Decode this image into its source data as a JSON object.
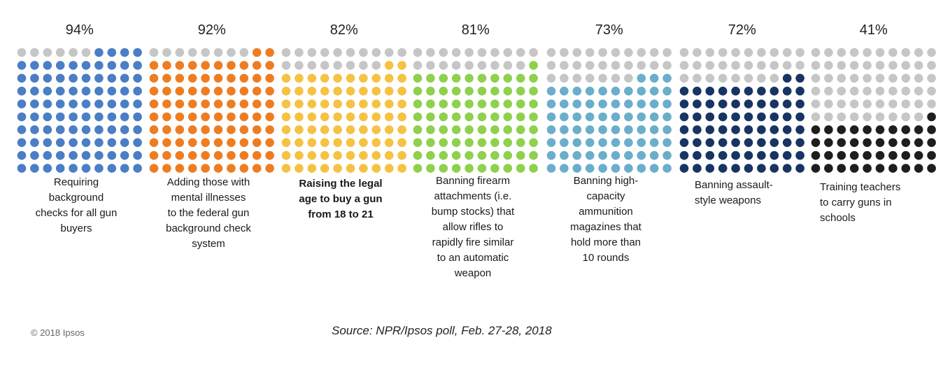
{
  "chart_data": {
    "type": "waffle",
    "unselected_color": "#c6c6c6",
    "items": [
      {
        "value": 94,
        "value_label": "94%",
        "label": "Requiring\nbackground\nchecks for all gun\nbuyers",
        "color": "#4a7ec6"
      },
      {
        "value": 92,
        "value_label": "92%",
        "label": "Adding those with\nmental illnesses\nto the federal gun\nbackground check\nsystem",
        "color": "#ee7d22"
      },
      {
        "value": 82,
        "value_label": "82%",
        "label": "Raising the legal\nage to buy a gun\nfrom 18 to 21",
        "color": "#f5c242"
      },
      {
        "value": 81,
        "value_label": "81%",
        "label": "Banning firearm\nattachments (i.e.\nbump stocks) that\nallow rifles to\nrapidly fire similar\nto an automatic\nweapon",
        "color": "#8ed14d"
      },
      {
        "value": 73,
        "value_label": "73%",
        "label": "Banning high-\ncapacity\nammunition\nmagazines that\nhold more than\n10 rounds",
        "color": "#6aaecb"
      },
      {
        "value": 72,
        "value_label": "72%",
        "label": "Banning assault-\nstyle weapons",
        "color": "#173463"
      },
      {
        "value": 41,
        "value_label": "41%",
        "label": "Training teachers\nto carry guns in\nschools",
        "color": "#1e1e1e"
      }
    ]
  },
  "footer": {
    "copyright": "© 2018 Ipsos",
    "source": "Source: NPR/Ipsos poll, Feb. 27-28, 2018"
  }
}
